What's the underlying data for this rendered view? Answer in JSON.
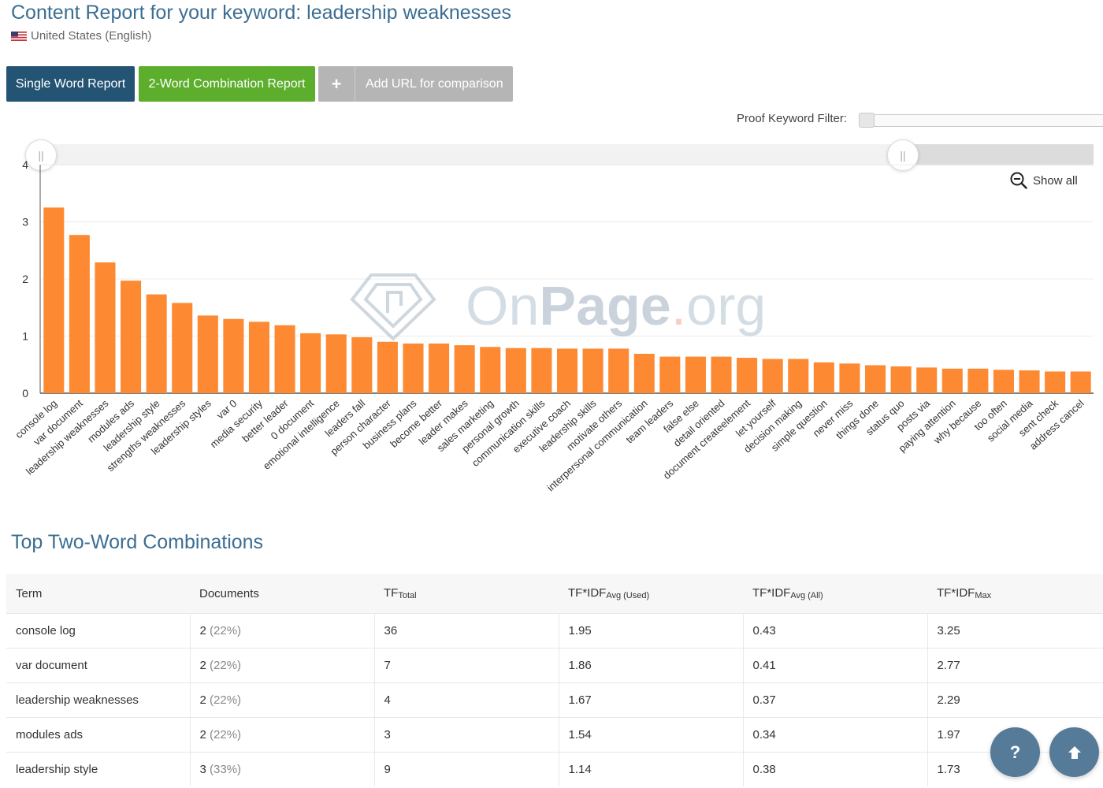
{
  "header": {
    "title": "Content Report for your keyword: leadership weaknesses",
    "locale": "United States (English)"
  },
  "toolbar": {
    "single_word": "Single Word Report",
    "two_word": "2-Word Combination Report",
    "add_url_plus": "+",
    "add_url": "Add URL for comparison"
  },
  "filter": {
    "label": "Proof Keyword Filter:"
  },
  "chart_controls": {
    "show_all": "Show all",
    "handle_glyph": "||"
  },
  "watermark": {
    "text_on": "On",
    "text_page": "Page",
    "text_dot": ".",
    "text_org": "org"
  },
  "colors": {
    "bar": "#fd8a33",
    "title": "#3b6e92",
    "single_btn": "#245474",
    "combo_btn": "#5cae2c",
    "fab": "#557b98"
  },
  "chart_data": {
    "type": "bar",
    "categories": [
      "console log",
      "var document",
      "leadership weaknesses",
      "modules ads",
      "leadership style",
      "strengths weaknesses",
      "leadership styles",
      "var 0",
      "media security",
      "better leader",
      "0 document",
      "emotional intelligence",
      "leaders fall",
      "person character",
      "business plans",
      "become better",
      "leader makes",
      "sales marketing",
      "personal growth",
      "communication skills",
      "executive coach",
      "leadership skills",
      "motivate others",
      "interpersonal communication",
      "team leaders",
      "false else",
      "detail oriented",
      "document createelement",
      "let yourself",
      "decision making",
      "simple question",
      "never miss",
      "things done",
      "status quo",
      "posts via",
      "paying attention",
      "why because",
      "too often",
      "social media",
      "sent check",
      "address cancel"
    ],
    "values": [
      3.25,
      2.77,
      2.29,
      1.97,
      1.73,
      1.58,
      1.36,
      1.3,
      1.25,
      1.19,
      1.05,
      1.03,
      0.98,
      0.9,
      0.87,
      0.87,
      0.84,
      0.81,
      0.79,
      0.79,
      0.78,
      0.78,
      0.78,
      0.69,
      0.64,
      0.64,
      0.64,
      0.62,
      0.6,
      0.6,
      0.54,
      0.52,
      0.49,
      0.47,
      0.45,
      0.43,
      0.43,
      0.41,
      0.4,
      0.38,
      0.38
    ],
    "ylim": [
      0,
      4
    ],
    "yticks": [
      "0",
      "1",
      "2",
      "3",
      "4"
    ],
    "grid": true
  },
  "table": {
    "title": "Top Two-Word Combinations",
    "headers": {
      "term": "Term",
      "documents": "Documents",
      "tf_main": "TF",
      "tf_sub": "Total",
      "avg_used_main": "TF*IDF",
      "avg_used_sub": "Avg (Used)",
      "avg_all_main": "TF*IDF",
      "avg_all_sub": "Avg (All)",
      "max_main": "TF*IDF",
      "max_sub": "Max"
    },
    "rows": [
      {
        "term": "console log",
        "docs": "2",
        "pct": "(22%)",
        "tf": "36",
        "avg_used": "1.95",
        "avg_all": "0.43",
        "max": "3.25"
      },
      {
        "term": "var document",
        "docs": "2",
        "pct": "(22%)",
        "tf": "7",
        "avg_used": "1.86",
        "avg_all": "0.41",
        "max": "2.77"
      },
      {
        "term": "leadership weaknesses",
        "docs": "2",
        "pct": "(22%)",
        "tf": "4",
        "avg_used": "1.67",
        "avg_all": "0.37",
        "max": "2.29"
      },
      {
        "term": "modules ads",
        "docs": "2",
        "pct": "(22%)",
        "tf": "3",
        "avg_used": "1.54",
        "avg_all": "0.34",
        "max": "1.97"
      },
      {
        "term": "leadership style",
        "docs": "3",
        "pct": "(33%)",
        "tf": "9",
        "avg_used": "1.14",
        "avg_all": "0.38",
        "max": "1.73"
      }
    ]
  },
  "fabs": {
    "help": "?"
  }
}
